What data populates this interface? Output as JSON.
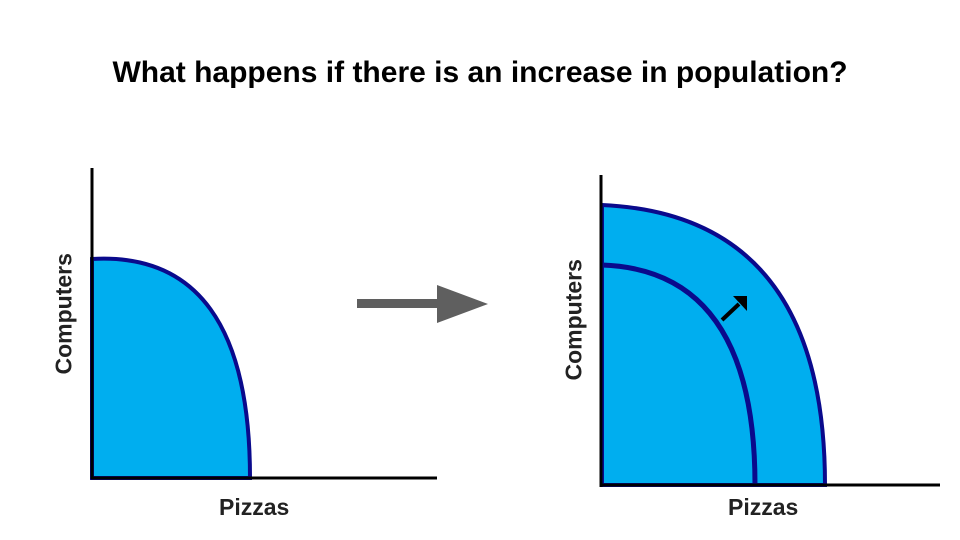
{
  "slide": {
    "title": "What happens if there is an increase in population?"
  },
  "left_graph": {
    "y_axis_label": "Computers",
    "x_axis_label": "Pizzas"
  },
  "right_graph": {
    "y_axis_label": "Computers",
    "x_axis_label": "Pizzas"
  },
  "colors": {
    "fill": "#00aeef",
    "curve": "#0a0a8c",
    "axis": "#000000",
    "transition_arrow": "#5f5f5f"
  }
}
